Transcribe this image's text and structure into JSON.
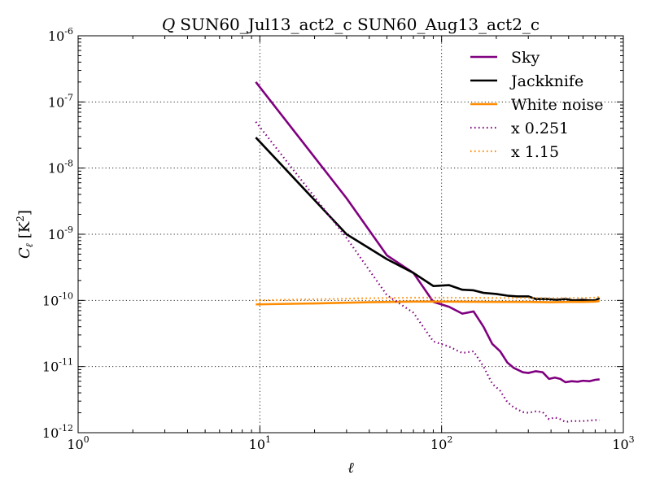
{
  "chart_data": {
    "type": "line",
    "title": "Q SUN60_Jul13_act2_c SUN60_Aug13_act2_c",
    "title_symbol": "Q",
    "title_text": "SUN60_Jul13_act2_c SUN60_Aug13_act2_c",
    "xlabel": "ℓ",
    "ylabel": "C_ℓ [K²]",
    "ylabel_main": "C",
    "ylabel_sub": "ℓ",
    "ylabel_unit": "[K",
    "ylabel_unit_sup": "2",
    "ylabel_unit_close": "]",
    "xscale": "log",
    "yscale": "log",
    "xlim": [
      1,
      1000
    ],
    "ylim": [
      1e-12,
      1e-06
    ],
    "x_tick_labels": [
      {
        "base": "10",
        "exp": "0"
      },
      {
        "base": "10",
        "exp": "1"
      },
      {
        "base": "10",
        "exp": "2"
      },
      {
        "base": "10",
        "exp": "3"
      }
    ],
    "y_tick_labels": [
      {
        "base": "10",
        "exp": "-12"
      },
      {
        "base": "10",
        "exp": "-11"
      },
      {
        "base": "10",
        "exp": "-10"
      },
      {
        "base": "10",
        "exp": "-9"
      },
      {
        "base": "10",
        "exp": "-8"
      },
      {
        "base": "10",
        "exp": "-7"
      },
      {
        "base": "10",
        "exp": "-6"
      }
    ],
    "grid": true,
    "legend_position": "top-right",
    "series": [
      {
        "name": "Sky",
        "color": "#800080",
        "style": "solid",
        "points": [
          [
            9.5,
            2e-07
          ],
          [
            30,
            3.5e-09
          ],
          [
            50,
            4.8e-10
          ],
          [
            70,
            2.6e-10
          ],
          [
            90,
            9.5e-11
          ],
          [
            110,
            8e-11
          ],
          [
            130,
            6.3e-11
          ],
          [
            150,
            6.8e-11
          ],
          [
            170,
            4e-11
          ],
          [
            190,
            2.2e-11
          ],
          [
            210,
            1.7e-11
          ],
          [
            230,
            1.15e-11
          ],
          [
            250,
            9.5e-12
          ],
          [
            280,
            8.2e-12
          ],
          [
            300,
            8e-12
          ],
          [
            330,
            8.5e-12
          ],
          [
            360,
            8.2e-12
          ],
          [
            390,
            6.5e-12
          ],
          [
            420,
            6.8e-12
          ],
          [
            450,
            6.5e-12
          ],
          [
            480,
            5.8e-12
          ],
          [
            520,
            6e-12
          ],
          [
            560,
            5.9e-12
          ],
          [
            600,
            6.1e-12
          ],
          [
            650,
            6e-12
          ],
          [
            700,
            6.3e-12
          ],
          [
            740,
            6.4e-12
          ]
        ]
      },
      {
        "name": "Jackknife",
        "color": "#000000",
        "style": "solid",
        "points": [
          [
            9.5,
            2.9e-08
          ],
          [
            30,
            1e-09
          ],
          [
            50,
            4.2e-10
          ],
          [
            70,
            2.6e-10
          ],
          [
            90,
            1.65e-10
          ],
          [
            110,
            1.7e-10
          ],
          [
            130,
            1.45e-10
          ],
          [
            150,
            1.42e-10
          ],
          [
            170,
            1.3e-10
          ],
          [
            200,
            1.25e-10
          ],
          [
            230,
            1.18e-10
          ],
          [
            260,
            1.15e-10
          ],
          [
            300,
            1.15e-10
          ],
          [
            330,
            1.05e-10
          ],
          [
            380,
            1.05e-10
          ],
          [
            430,
            1.02e-10
          ],
          [
            480,
            1.05e-10
          ],
          [
            530,
            1e-10
          ],
          [
            600,
            1.02e-10
          ],
          [
            650,
            1e-10
          ],
          [
            700,
            1e-10
          ],
          [
            740,
            1.08e-10
          ]
        ]
      },
      {
        "name": "White noise",
        "color": "#ff8c00",
        "style": "solid",
        "points": [
          [
            9.5,
            8.7e-11
          ],
          [
            20,
            9e-11
          ],
          [
            40,
            9.4e-11
          ],
          [
            70,
            9.6e-11
          ],
          [
            100,
            9.6e-11
          ],
          [
            200,
            9.5e-11
          ],
          [
            300,
            9.5e-11
          ],
          [
            400,
            9.4e-11
          ],
          [
            500,
            9.5e-11
          ],
          [
            600,
            9.5e-11
          ],
          [
            700,
            9.6e-11
          ],
          [
            740,
            9.8e-11
          ]
        ]
      },
      {
        "name": "x 0.251",
        "color": "#800080",
        "style": "dotted",
        "points": [
          [
            9.5,
            5e-08
          ],
          [
            30,
            8.8e-10
          ],
          [
            50,
            1.2e-10
          ],
          [
            70,
            6.5e-11
          ],
          [
            90,
            2.4e-11
          ],
          [
            110,
            2e-11
          ],
          [
            130,
            1.6e-11
          ],
          [
            150,
            1.7e-11
          ],
          [
            170,
            1e-11
          ],
          [
            190,
            5.5e-12
          ],
          [
            210,
            4.3e-12
          ],
          [
            230,
            2.9e-12
          ],
          [
            250,
            2.4e-12
          ],
          [
            280,
            2.05e-12
          ],
          [
            300,
            2e-12
          ],
          [
            330,
            2.1e-12
          ],
          [
            360,
            2.05e-12
          ],
          [
            390,
            1.6e-12
          ],
          [
            420,
            1.7e-12
          ],
          [
            450,
            1.6e-12
          ],
          [
            480,
            1.45e-12
          ],
          [
            520,
            1.5e-12
          ],
          [
            600,
            1.5e-12
          ],
          [
            700,
            1.55e-12
          ],
          [
            740,
            1.55e-12
          ]
        ]
      },
      {
        "name": "x 1.15",
        "color": "#ff8c00",
        "style": "dotted",
        "points": [
          [
            9.5,
            1e-10
          ],
          [
            20,
            1.04e-10
          ],
          [
            40,
            1.08e-10
          ],
          [
            70,
            1.1e-10
          ],
          [
            100,
            1.1e-10
          ],
          [
            200,
            1.09e-10
          ],
          [
            300,
            1.09e-10
          ],
          [
            400,
            1.08e-10
          ],
          [
            500,
            1.09e-10
          ],
          [
            600,
            1.09e-10
          ],
          [
            700,
            1.1e-10
          ],
          [
            740,
            1.13e-10
          ]
        ]
      }
    ]
  }
}
